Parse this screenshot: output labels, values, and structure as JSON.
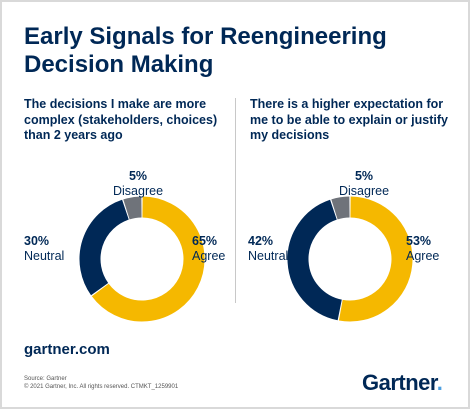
{
  "title": "Early Signals for Reengineering Decision Making",
  "colors": {
    "agree": "#f5b800",
    "neutral": "#002856",
    "disagree": "#6f737a",
    "text": "#002856"
  },
  "chart_data": [
    {
      "type": "pie",
      "title": "The decisions I make are more complex (stakeholders, choices) than 2 years ago",
      "categories": [
        "Agree",
        "Neutral",
        "Disagree"
      ],
      "values": [
        65,
        30,
        5
      ],
      "value_labels": [
        "65%",
        "30%",
        "5%"
      ],
      "donut": true
    },
    {
      "type": "pie",
      "title": "There is a higher expectation for me to be able to explain or justify my decisions",
      "categories": [
        "Agree",
        "Neutral",
        "Disagree"
      ],
      "values": [
        53,
        42,
        5
      ],
      "value_labels": [
        "53%",
        "42%",
        "5%"
      ],
      "donut": true
    }
  ],
  "footer": {
    "website": "gartner.com",
    "source_line1": "Source: Gartner",
    "source_line2": "© 2021 Gartner, Inc. All rights reserved. CTMKT_1259901",
    "logo_text": "Gartner",
    "logo_dot": "."
  }
}
